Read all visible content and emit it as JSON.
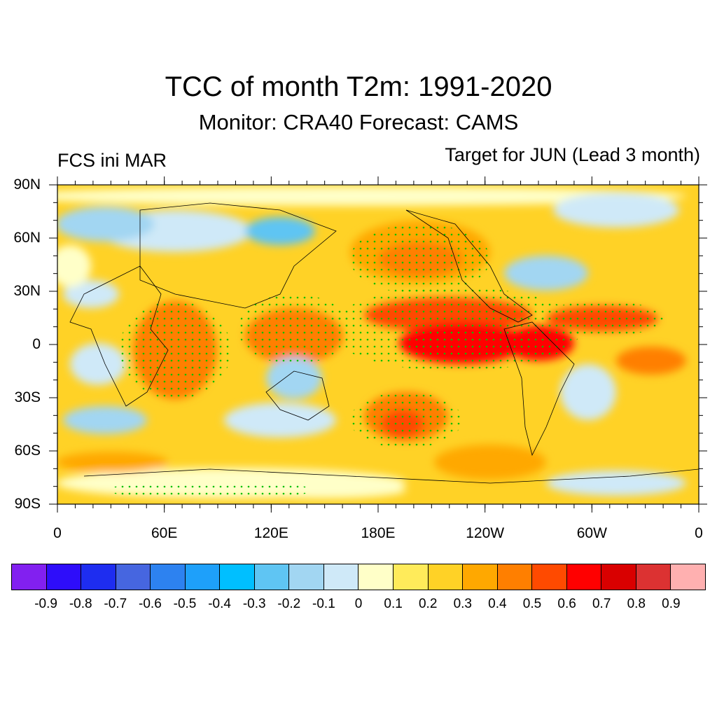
{
  "title": "TCC of month T2m: 1991-2020",
  "subtitle": "Monitor: CRA40   Forecast: CAMS",
  "left_string": "FCS ini MAR",
  "right_string": "Target for JUN (Lead 3 month)",
  "map": {
    "projection": "cylindrical-equidistant",
    "lat_labels": [
      "90N",
      "60N",
      "30N",
      "0",
      "30S",
      "60S",
      "90S"
    ],
    "lon_labels": [
      "0",
      "60E",
      "120E",
      "180E",
      "120W",
      "60W",
      "0"
    ],
    "stipple_color": "#00c000"
  },
  "colorbar": {
    "colors": [
      "#8220f0",
      "#2e0dfa",
      "#1e2df0",
      "#4666e0",
      "#2d82f0",
      "#1ea0fa",
      "#00bfff",
      "#5fc5f3",
      "#a2d6f2",
      "#cfe9f8",
      "#ffffc8",
      "#ffeb5a",
      "#ffd226",
      "#ffa800",
      "#ff7f00",
      "#ff4a00",
      "#ff0000",
      "#d90000",
      "#dc3232",
      "#ffb0b0"
    ],
    "labels": [
      "-0.9",
      "-0.8",
      "-0.7",
      "-0.6",
      "-0.5",
      "-0.4",
      "-0.3",
      "-0.2",
      "-0.1",
      "0",
      "0.1",
      "0.2",
      "0.3",
      "0.4",
      "0.5",
      "0.6",
      "0.7",
      "0.8",
      "0.9"
    ]
  }
}
